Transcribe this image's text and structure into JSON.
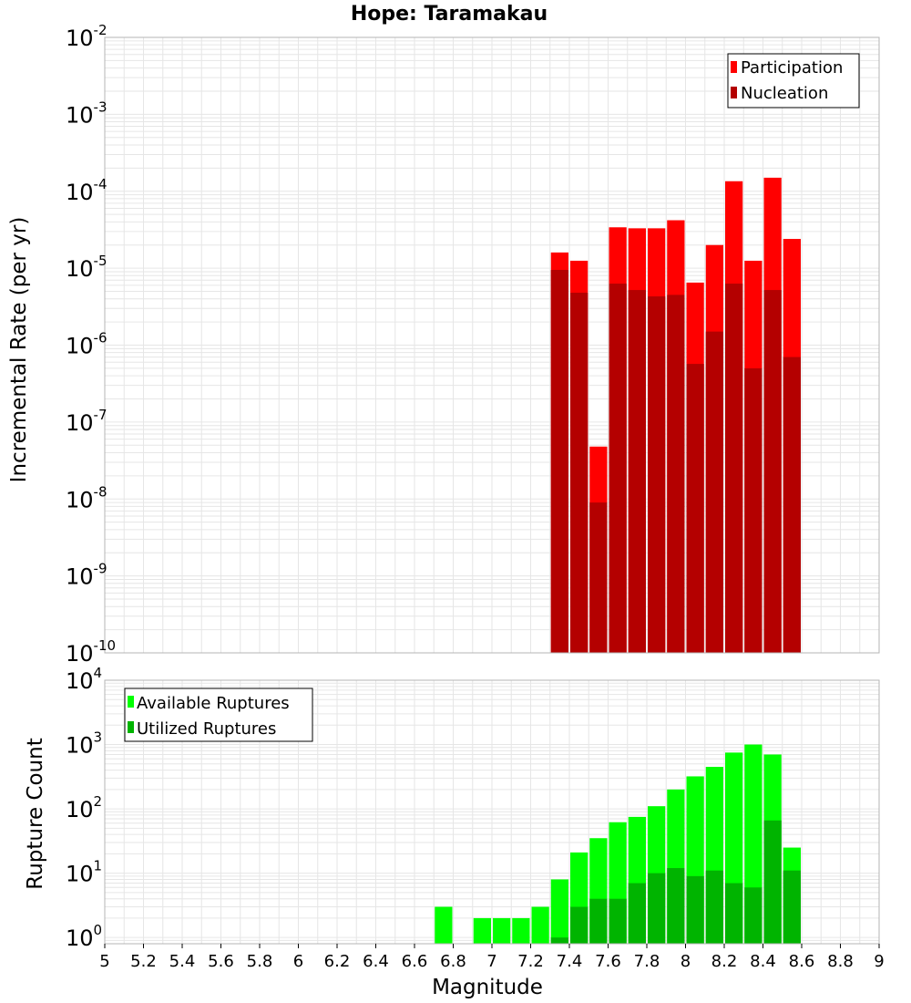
{
  "title": "Hope: Taramakau",
  "colors": {
    "participation": "#ff0000",
    "nucleation": "#b40000",
    "available": "#00ff00",
    "utilized": "#00b400",
    "grid": "#e6e6e6",
    "frame": "#b4b4b4"
  },
  "chart_data": [
    {
      "type": "bar",
      "title": "Hope: Taramakau",
      "xlabel": "Magnitude",
      "ylabel": "Incremental Rate (per yr)",
      "y_scale": "log",
      "ylim": [
        1e-10,
        0.01
      ],
      "xlim": [
        5,
        9
      ],
      "bin_width": 0.1,
      "grid": true,
      "legend_position": "top-right",
      "y_tick_labels": [
        {
          "base": "10",
          "exp": "-10"
        },
        {
          "base": "10",
          "exp": "-9"
        },
        {
          "base": "10",
          "exp": "-8"
        },
        {
          "base": "10",
          "exp": "-7"
        },
        {
          "base": "10",
          "exp": "-6"
        },
        {
          "base": "10",
          "exp": "-5"
        },
        {
          "base": "10",
          "exp": "-4"
        },
        {
          "base": "10",
          "exp": "-3"
        },
        {
          "base": "10",
          "exp": "-2"
        }
      ],
      "x": [
        7.35,
        7.45,
        7.55,
        7.65,
        7.75,
        7.85,
        7.95,
        8.05,
        8.15,
        8.25,
        8.35,
        8.45,
        8.55
      ],
      "series": [
        {
          "name": "Participation",
          "values": [
            1.6e-05,
            1.25e-05,
            4.8e-08,
            3.4e-05,
            3.3e-05,
            3.3e-05,
            4.2e-05,
            6.5e-06,
            2e-05,
            0.000135,
            1.25e-05,
            0.00015,
            2.4e-05
          ]
        },
        {
          "name": "Nucleation",
          "values": [
            9.5e-06,
            4.8e-06,
            9e-09,
            6.3e-06,
            5.2e-06,
            4.3e-06,
            4.5e-06,
            5.7e-07,
            1.5e-06,
            6.3e-06,
            5e-07,
            5.2e-06,
            7e-07
          ]
        }
      ]
    },
    {
      "type": "bar",
      "xlabel": "Magnitude",
      "ylabel": "Rupture Count",
      "y_scale": "log",
      "ylim": [
        0.8,
        10000
      ],
      "xlim": [
        5,
        9
      ],
      "bin_width": 0.1,
      "grid": true,
      "legend_position": "top-left",
      "y_tick_labels": [
        {
          "base": "10",
          "exp": "0"
        },
        {
          "base": "10",
          "exp": "1"
        },
        {
          "base": "10",
          "exp": "2"
        },
        {
          "base": "10",
          "exp": "3"
        },
        {
          "base": "10",
          "exp": "4"
        }
      ],
      "x_tick_labels": [
        "5",
        "5.2",
        "5.4",
        "5.6",
        "5.8",
        "6",
        "6.2",
        "6.4",
        "6.6",
        "6.8",
        "7",
        "7.2",
        "7.4",
        "7.6",
        "7.8",
        "8",
        "8.2",
        "8.4",
        "8.6",
        "8.8",
        "9"
      ],
      "x": [
        6.75,
        6.95,
        7.05,
        7.15,
        7.25,
        7.35,
        7.45,
        7.55,
        7.65,
        7.75,
        7.85,
        7.95,
        8.05,
        8.15,
        8.25,
        8.35,
        8.45,
        8.55
      ],
      "series": [
        {
          "name": "Available Ruptures",
          "values": [
            3,
            2,
            2,
            2,
            3,
            8,
            21,
            35,
            62,
            75,
            110,
            200,
            320,
            450,
            750,
            1000,
            700,
            25
          ]
        },
        {
          "name": "Utilized Ruptures",
          "values": [
            0,
            0,
            0,
            0,
            0,
            1,
            3,
            4,
            4,
            7,
            10,
            12,
            9,
            11,
            7,
            6,
            66,
            11
          ]
        }
      ]
    }
  ]
}
